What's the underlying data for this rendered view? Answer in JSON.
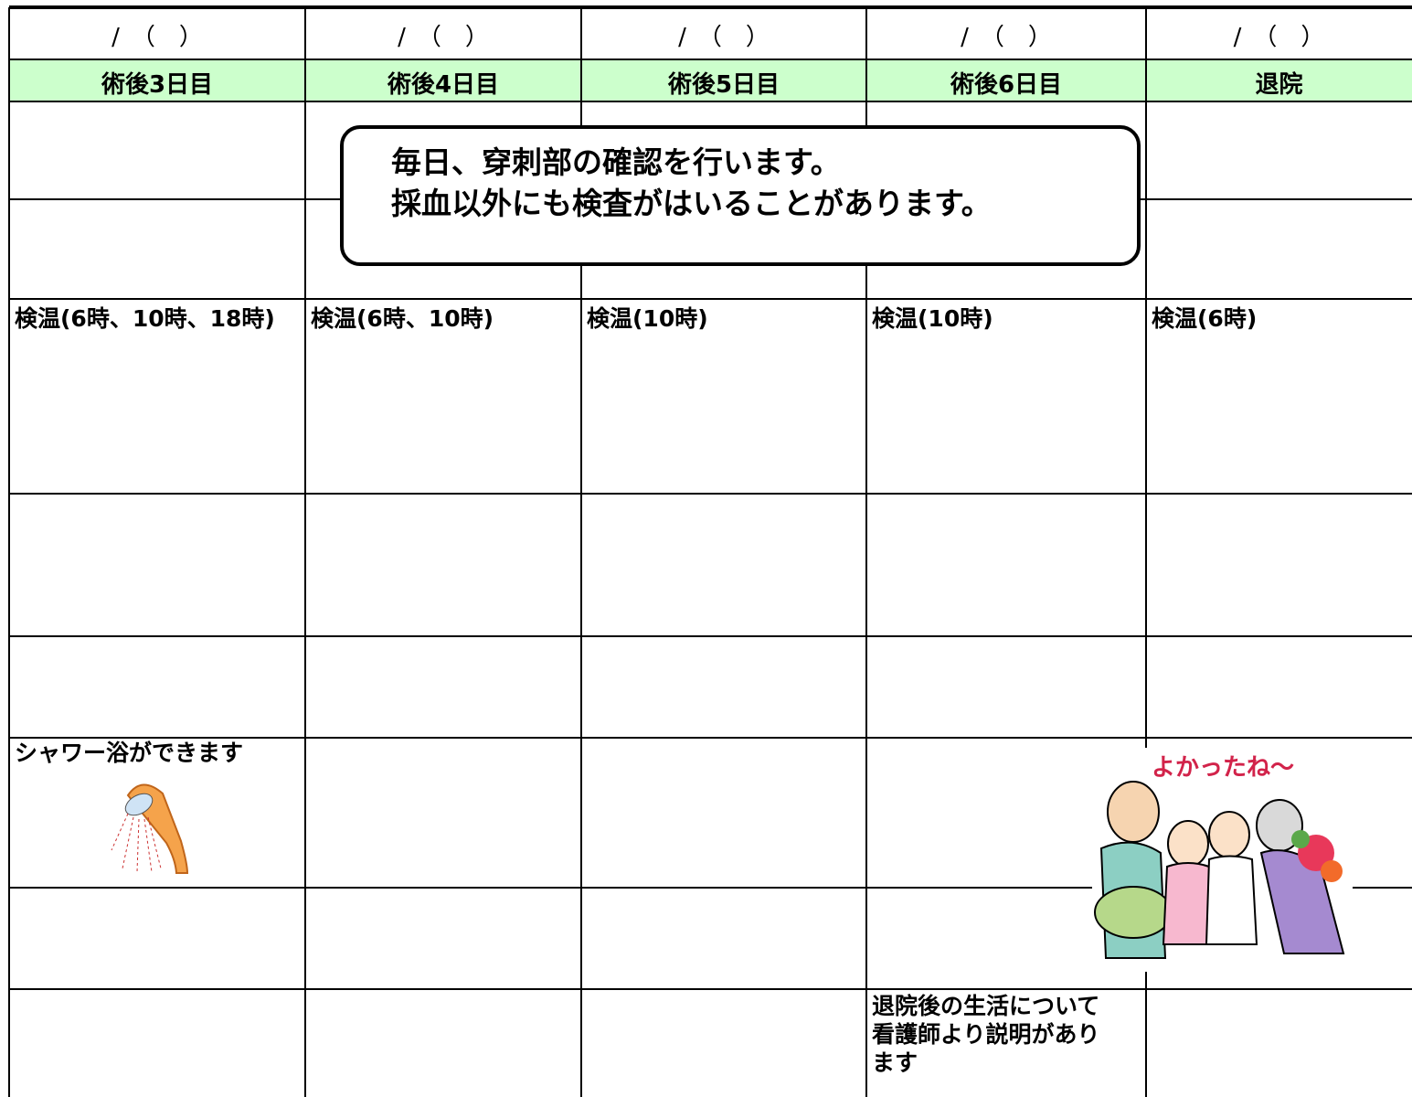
{
  "schedule": {
    "columns": [
      {
        "date": "/　（　）",
        "day": "術後3日目",
        "notes": [
          "検温(6時、10時、18時)",
          "シャワー浴ができます"
        ]
      },
      {
        "date": "/　（　）",
        "day": "術後4日目",
        "notes": [
          "検温(6時、10時)"
        ]
      },
      {
        "date": "/　（　）",
        "day": "術後5日目",
        "notes": [
          "検温(10時)"
        ]
      },
      {
        "date": "/　（　）",
        "day": "術後6日目",
        "notes": [
          "検温(10時)",
          "退院後の生活について",
          "看護師より説明があり",
          "ます"
        ]
      },
      {
        "date": "/　（　）",
        "day": "退院",
        "notes": [
          "検温(6時)"
        ]
      }
    ],
    "callout": [
      "毎日、穿刺部の確認を行います。",
      "採血以外にも検査がはいることがあります。"
    ],
    "illustration_caption": "よかったね〜"
  }
}
